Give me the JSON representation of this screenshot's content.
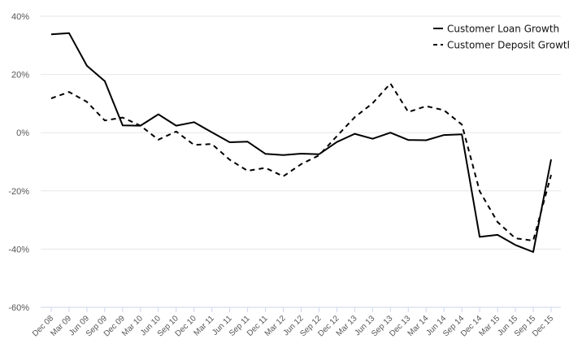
{
  "chart_data": {
    "type": "line",
    "title": "",
    "xlabel": "",
    "ylabel": "",
    "ylim": [
      -60,
      40
    ],
    "yticks": [
      40,
      20,
      0,
      -20,
      -40,
      -60
    ],
    "ytick_labels": [
      "40%",
      "20%",
      "0%",
      "-20%",
      "-40%",
      "-60%"
    ],
    "grid": "horizontal",
    "legend_position": "top-right",
    "categories": [
      "Dec 08",
      "Mar 09",
      "Jun 09",
      "Sep 09",
      "Dec 09",
      "Mar 10",
      "Jun 10",
      "Sep 10",
      "Dec 10",
      "Mar 11",
      "Jun 11",
      "Sep 11",
      "Dec 11",
      "Mar 12",
      "Jun 12",
      "Sep 12",
      "Dec 12",
      "Mar 13",
      "Jun 13",
      "Sep 13",
      "Dec 13",
      "Mar 14",
      "Jun 14",
      "Sep 14",
      "Dec 14",
      "Mar 15",
      "Jun 15",
      "Sep 15",
      "Dec 15"
    ],
    "series": [
      {
        "name": "Customer Loan Growth",
        "style": "solid",
        "color": "#000000",
        "values": [
          33.8,
          34.2,
          23.0,
          17.7,
          2.5,
          2.4,
          6.3,
          2.4,
          3.6,
          0.1,
          -3.3,
          -3.1,
          -7.3,
          -7.7,
          -7.2,
          -7.4,
          -3.2,
          -0.4,
          -2.1,
          0.0,
          -2.5,
          -2.6,
          -0.8,
          -0.6,
          -35.8,
          -35.1,
          -38.6,
          -41.0,
          -9.2
        ]
      },
      {
        "name": "Customer Deposit Growth",
        "style": "dashed",
        "color": "#000000",
        "values": [
          11.8,
          14.0,
          10.6,
          4.2,
          5.2,
          2.4,
          -2.4,
          0.4,
          -4.2,
          -3.9,
          -9.3,
          -13.1,
          -12.1,
          -15.0,
          -10.8,
          -7.8,
          -1.2,
          5.3,
          10.1,
          16.9,
          7.1,
          9.1,
          7.7,
          2.8,
          -20.1,
          -30.7,
          -36.3,
          -37.1,
          -14.5
        ]
      }
    ]
  }
}
